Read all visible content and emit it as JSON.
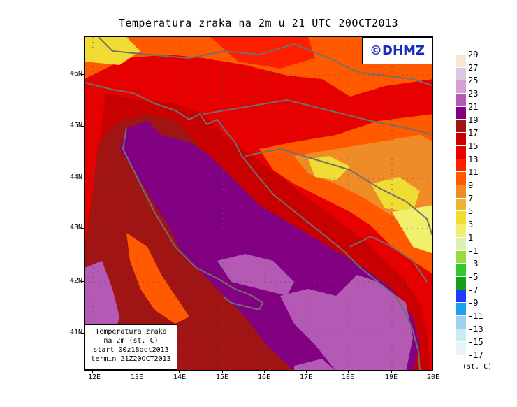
{
  "title": "Temperatura zraka na 2m u 21 UTC 20OCT2013",
  "logo_text": "©DHMZ",
  "info": {
    "line1": "Temperatura zraka",
    "line2": "na 2m (st. C)",
    "line3": "start 00z18oct2013",
    "line4": "termin 21Z20OCT2013"
  },
  "legend": {
    "unit": "(st. C)",
    "levels": [
      "29",
      "27",
      "25",
      "23",
      "21",
      "19",
      "17",
      "15",
      "13",
      "11",
      "9",
      "7",
      "5",
      "3",
      "1",
      "-1",
      "-3",
      "-5",
      "-7",
      "-9",
      "-11",
      "-13",
      "-15",
      "-17"
    ],
    "colors": [
      "#fae6d2",
      "#dcc8dc",
      "#d4a0d4",
      "#b45ab4",
      "#820082",
      "#a01414",
      "#c80000",
      "#e60000",
      "#ff1e00",
      "#ff5a00",
      "#f08c28",
      "#f0b432",
      "#f0dc32",
      "#f0f06e",
      "#dcf0b4",
      "#96dc3c",
      "#32c832",
      "#14a014",
      "#1e3cff",
      "#1ea0f0",
      "#a0d2f0",
      "#c8ebf5",
      "#e6f5fa"
    ]
  },
  "axes": {
    "lat_labels": [
      "46N",
      "45N",
      "44N",
      "43N",
      "42N",
      "41N"
    ],
    "lon_labels": [
      "12E",
      "13E",
      "14E",
      "15E",
      "16E",
      "17E",
      "18E",
      "19E",
      "20E"
    ]
  },
  "icons": {
    "coastline": "coastline-icon",
    "border": "border-icon"
  }
}
